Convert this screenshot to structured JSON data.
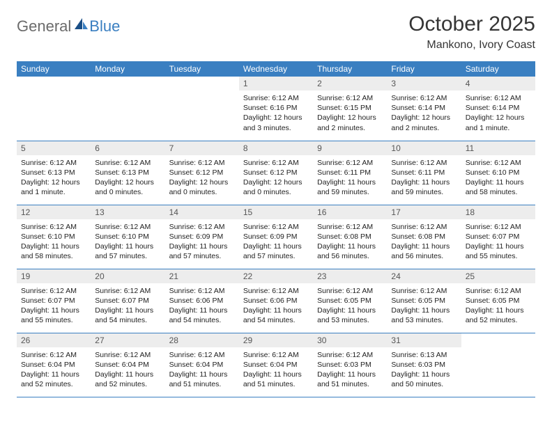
{
  "logo": {
    "word1": "General",
    "word2": "Blue"
  },
  "title": "October 2025",
  "location": "Mankono, Ivory Coast",
  "colors": {
    "header_bg": "#3a7fc1",
    "header_text": "#ffffff",
    "daynum_bg": "#ededed",
    "border": "#3a7fc1",
    "logo_gray": "#6b6b6b",
    "logo_blue": "#3a7fc1"
  },
  "dayHeaders": [
    "Sunday",
    "Monday",
    "Tuesday",
    "Wednesday",
    "Thursday",
    "Friday",
    "Saturday"
  ],
  "weeks": [
    [
      {
        "empty": true
      },
      {
        "empty": true
      },
      {
        "empty": true
      },
      {
        "num": "1",
        "sunrise": "Sunrise: 6:12 AM",
        "sunset": "Sunset: 6:16 PM",
        "daylight": "Daylight: 12 hours and 3 minutes."
      },
      {
        "num": "2",
        "sunrise": "Sunrise: 6:12 AM",
        "sunset": "Sunset: 6:15 PM",
        "daylight": "Daylight: 12 hours and 2 minutes."
      },
      {
        "num": "3",
        "sunrise": "Sunrise: 6:12 AM",
        "sunset": "Sunset: 6:14 PM",
        "daylight": "Daylight: 12 hours and 2 minutes."
      },
      {
        "num": "4",
        "sunrise": "Sunrise: 6:12 AM",
        "sunset": "Sunset: 6:14 PM",
        "daylight": "Daylight: 12 hours and 1 minute."
      }
    ],
    [
      {
        "num": "5",
        "sunrise": "Sunrise: 6:12 AM",
        "sunset": "Sunset: 6:13 PM",
        "daylight": "Daylight: 12 hours and 1 minute."
      },
      {
        "num": "6",
        "sunrise": "Sunrise: 6:12 AM",
        "sunset": "Sunset: 6:13 PM",
        "daylight": "Daylight: 12 hours and 0 minutes."
      },
      {
        "num": "7",
        "sunrise": "Sunrise: 6:12 AM",
        "sunset": "Sunset: 6:12 PM",
        "daylight": "Daylight: 12 hours and 0 minutes."
      },
      {
        "num": "8",
        "sunrise": "Sunrise: 6:12 AM",
        "sunset": "Sunset: 6:12 PM",
        "daylight": "Daylight: 12 hours and 0 minutes."
      },
      {
        "num": "9",
        "sunrise": "Sunrise: 6:12 AM",
        "sunset": "Sunset: 6:11 PM",
        "daylight": "Daylight: 11 hours and 59 minutes."
      },
      {
        "num": "10",
        "sunrise": "Sunrise: 6:12 AM",
        "sunset": "Sunset: 6:11 PM",
        "daylight": "Daylight: 11 hours and 59 minutes."
      },
      {
        "num": "11",
        "sunrise": "Sunrise: 6:12 AM",
        "sunset": "Sunset: 6:10 PM",
        "daylight": "Daylight: 11 hours and 58 minutes."
      }
    ],
    [
      {
        "num": "12",
        "sunrise": "Sunrise: 6:12 AM",
        "sunset": "Sunset: 6:10 PM",
        "daylight": "Daylight: 11 hours and 58 minutes."
      },
      {
        "num": "13",
        "sunrise": "Sunrise: 6:12 AM",
        "sunset": "Sunset: 6:10 PM",
        "daylight": "Daylight: 11 hours and 57 minutes."
      },
      {
        "num": "14",
        "sunrise": "Sunrise: 6:12 AM",
        "sunset": "Sunset: 6:09 PM",
        "daylight": "Daylight: 11 hours and 57 minutes."
      },
      {
        "num": "15",
        "sunrise": "Sunrise: 6:12 AM",
        "sunset": "Sunset: 6:09 PM",
        "daylight": "Daylight: 11 hours and 57 minutes."
      },
      {
        "num": "16",
        "sunrise": "Sunrise: 6:12 AM",
        "sunset": "Sunset: 6:08 PM",
        "daylight": "Daylight: 11 hours and 56 minutes."
      },
      {
        "num": "17",
        "sunrise": "Sunrise: 6:12 AM",
        "sunset": "Sunset: 6:08 PM",
        "daylight": "Daylight: 11 hours and 56 minutes."
      },
      {
        "num": "18",
        "sunrise": "Sunrise: 6:12 AM",
        "sunset": "Sunset: 6:07 PM",
        "daylight": "Daylight: 11 hours and 55 minutes."
      }
    ],
    [
      {
        "num": "19",
        "sunrise": "Sunrise: 6:12 AM",
        "sunset": "Sunset: 6:07 PM",
        "daylight": "Daylight: 11 hours and 55 minutes."
      },
      {
        "num": "20",
        "sunrise": "Sunrise: 6:12 AM",
        "sunset": "Sunset: 6:07 PM",
        "daylight": "Daylight: 11 hours and 54 minutes."
      },
      {
        "num": "21",
        "sunrise": "Sunrise: 6:12 AM",
        "sunset": "Sunset: 6:06 PM",
        "daylight": "Daylight: 11 hours and 54 minutes."
      },
      {
        "num": "22",
        "sunrise": "Sunrise: 6:12 AM",
        "sunset": "Sunset: 6:06 PM",
        "daylight": "Daylight: 11 hours and 54 minutes."
      },
      {
        "num": "23",
        "sunrise": "Sunrise: 6:12 AM",
        "sunset": "Sunset: 6:05 PM",
        "daylight": "Daylight: 11 hours and 53 minutes."
      },
      {
        "num": "24",
        "sunrise": "Sunrise: 6:12 AM",
        "sunset": "Sunset: 6:05 PM",
        "daylight": "Daylight: 11 hours and 53 minutes."
      },
      {
        "num": "25",
        "sunrise": "Sunrise: 6:12 AM",
        "sunset": "Sunset: 6:05 PM",
        "daylight": "Daylight: 11 hours and 52 minutes."
      }
    ],
    [
      {
        "num": "26",
        "sunrise": "Sunrise: 6:12 AM",
        "sunset": "Sunset: 6:04 PM",
        "daylight": "Daylight: 11 hours and 52 minutes."
      },
      {
        "num": "27",
        "sunrise": "Sunrise: 6:12 AM",
        "sunset": "Sunset: 6:04 PM",
        "daylight": "Daylight: 11 hours and 52 minutes."
      },
      {
        "num": "28",
        "sunrise": "Sunrise: 6:12 AM",
        "sunset": "Sunset: 6:04 PM",
        "daylight": "Daylight: 11 hours and 51 minutes."
      },
      {
        "num": "29",
        "sunrise": "Sunrise: 6:12 AM",
        "sunset": "Sunset: 6:04 PM",
        "daylight": "Daylight: 11 hours and 51 minutes."
      },
      {
        "num": "30",
        "sunrise": "Sunrise: 6:12 AM",
        "sunset": "Sunset: 6:03 PM",
        "daylight": "Daylight: 11 hours and 51 minutes."
      },
      {
        "num": "31",
        "sunrise": "Sunrise: 6:13 AM",
        "sunset": "Sunset: 6:03 PM",
        "daylight": "Daylight: 11 hours and 50 minutes."
      },
      {
        "empty": true
      }
    ]
  ]
}
